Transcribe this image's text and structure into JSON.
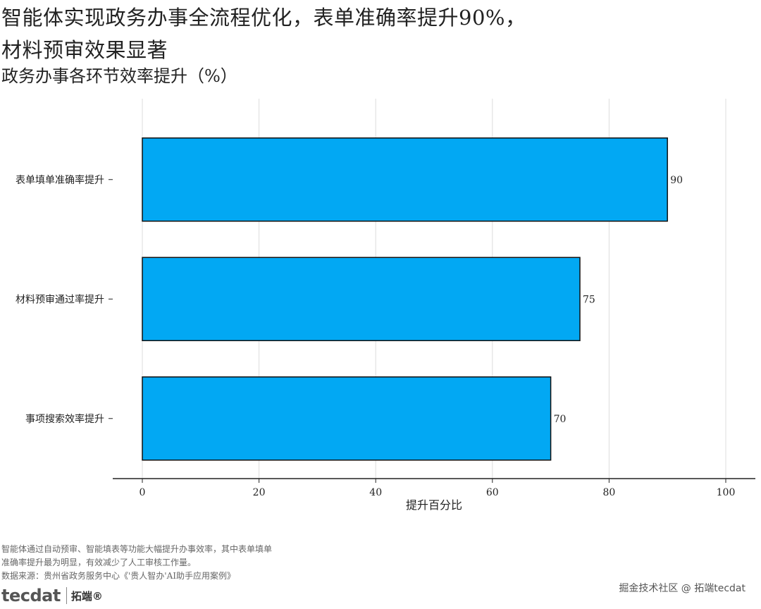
{
  "header": {
    "title_line1": "智能体实现政务办事全流程优化，表单准确率提升90%，",
    "title_line2": "材料预审效果显著",
    "subtitle": "政务办事各环节效率提升（%）"
  },
  "chart_data": {
    "type": "bar",
    "orientation": "horizontal",
    "categories": [
      "表单填单准确率提升",
      "材料预审通过率提升",
      "事项搜索效率提升"
    ],
    "values": [
      90,
      75,
      70
    ],
    "title": "政务办事各环节效率提升（%）",
    "xlabel": "提升百分比",
    "ylabel": "",
    "xlim": [
      0,
      100
    ],
    "xticks": [
      0,
      20,
      40,
      60,
      80,
      100
    ],
    "grid": "vertical",
    "bar_color": "#02a8f3",
    "bar_edge_color": "#111111",
    "data_labels": true
  },
  "footer": {
    "caption_line1": "智能体通过自动预审、智能填表等功能大幅提升办事效率，其中表单填单",
    "caption_line2": "准确率提升最为明显，有效减少了人工审核工作量。",
    "source": "数据来源：贵州省政务服务中心《'贵人智办'AI助手应用案例》",
    "logo_text": "tecdat",
    "logo_cn": "拓端®",
    "watermark": "掘金技术社区 @ 拓端tecdat"
  }
}
